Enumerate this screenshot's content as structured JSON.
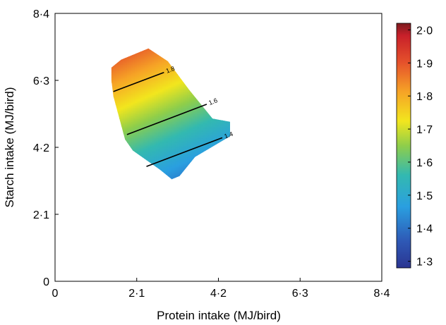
{
  "chart_data": {
    "type": "heatmap",
    "title": "",
    "xlabel": "Protein intake (MJ/bird)",
    "ylabel": "Starch intake (MJ/bird)",
    "xlim": [
      0,
      8.4
    ],
    "ylim": [
      0,
      8.4
    ],
    "x_ticks": [
      "0",
      "2·1",
      "4·2",
      "6·3",
      "8·4"
    ],
    "y_ticks": [
      "0",
      "2·1",
      "4·2",
      "6·3",
      "8·4"
    ],
    "grid": false,
    "region_outline": [
      [
        1.45,
        6.7
      ],
      [
        1.7,
        6.95
      ],
      [
        2.4,
        7.3
      ],
      [
        2.9,
        6.9
      ],
      [
        3.45,
        6.0
      ],
      [
        4.05,
        5.1
      ],
      [
        4.5,
        5.0
      ],
      [
        4.5,
        4.55
      ],
      [
        3.6,
        3.9
      ],
      [
        3.2,
        3.3
      ],
      [
        3.0,
        3.2
      ],
      [
        2.7,
        3.5
      ],
      [
        2.0,
        4.1
      ],
      [
        1.8,
        4.45
      ],
      [
        1.5,
        5.8
      ],
      [
        1.45,
        6.3
      ]
    ],
    "surface": {
      "description_of_gradient": "value increases with starch intake, decreases slightly with protein intake",
      "reference_point": [
        3.0,
        5.4
      ],
      "value_at_reference": 1.65,
      "slope_per_starch": 0.1,
      "slope_per_protein": -0.055
    },
    "contours": [
      {
        "level": 1.8,
        "label": "1.8",
        "points": [
          [
            1.5,
            5.95
          ],
          [
            2.8,
            6.55
          ]
        ]
      },
      {
        "level": 1.6,
        "label": "1.6",
        "points": [
          [
            1.85,
            4.6
          ],
          [
            3.9,
            5.55
          ]
        ]
      },
      {
        "level": 1.4,
        "label": "1.4",
        "points": [
          [
            2.35,
            3.6
          ],
          [
            4.3,
            4.5
          ]
        ]
      }
    ],
    "colorbar": {
      "range": [
        1.28,
        2.02
      ],
      "ticks": [
        "1·3",
        "1·4",
        "1·5",
        "1·6",
        "1·7",
        "1·8",
        "1·9",
        "2·0"
      ],
      "tick_values": [
        1.3,
        1.4,
        1.5,
        1.6,
        1.7,
        1.8,
        1.9,
        2.0
      ]
    }
  },
  "colors": {
    "scale": [
      "#2b3591",
      "#2e59b6",
      "#2a9fe0",
      "#33b9b0",
      "#8fce4a",
      "#f2e61e",
      "#f6a326",
      "#e5512b",
      "#c8202a",
      "#7a1a1e"
    ]
  }
}
